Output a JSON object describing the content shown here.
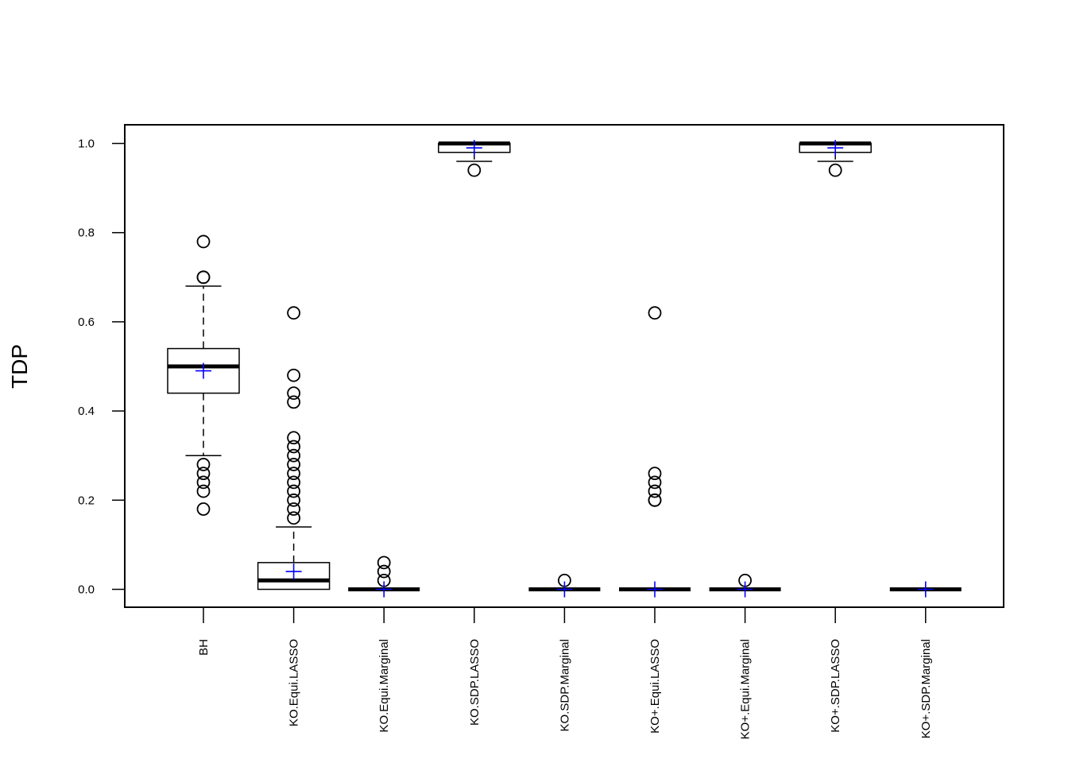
{
  "chart_data": {
    "type": "boxplot",
    "title": "",
    "xlabel": "",
    "ylabel": "TDP",
    "ylim": [
      -0.04,
      1.04
    ],
    "yticks": [
      0.0,
      0.2,
      0.4,
      0.6,
      0.8,
      1.0
    ],
    "ytick_labels": [
      "0.0",
      "0.2",
      "0.4",
      "0.6",
      "0.8",
      "1.0"
    ],
    "grid": false,
    "mean_marker_color": "#0000ff",
    "box_color": "#000000",
    "categories": [
      "BH",
      "KO.Equi.LASSO",
      "KO.Equi.Marginal",
      "KO.SDP.LASSO",
      "KO.SDP.Marginal",
      "KO+.Equi.LASSO",
      "KO+.Equi.Marginal",
      "KO+.SDP.LASSO",
      "KO+.SDP.Marginal"
    ],
    "boxes": [
      {
        "name": "BH",
        "min": 0.3,
        "q1": 0.44,
        "median": 0.5,
        "q3": 0.54,
        "max": 0.68,
        "mean": 0.49,
        "outliers": [
          0.18,
          0.22,
          0.24,
          0.26,
          0.28,
          0.7,
          0.7,
          0.78
        ]
      },
      {
        "name": "KO.Equi.LASSO",
        "min": 0.0,
        "q1": 0.0,
        "median": 0.02,
        "q3": 0.06,
        "max": 0.14,
        "mean": 0.04,
        "outliers": [
          0.16,
          0.18,
          0.2,
          0.22,
          0.24,
          0.26,
          0.28,
          0.3,
          0.32,
          0.34,
          0.42,
          0.44,
          0.48,
          0.62
        ]
      },
      {
        "name": "KO.Equi.Marginal",
        "min": 0.0,
        "q1": 0.0,
        "median": 0.0,
        "q3": 0.0,
        "max": 0.0,
        "mean": 0.0,
        "outliers": [
          0.02,
          0.04,
          0.06
        ]
      },
      {
        "name": "KO.SDP.LASSO",
        "min": 0.96,
        "q1": 0.98,
        "median": 1.0,
        "q3": 1.0,
        "max": 1.0,
        "mean": 0.99,
        "outliers": [
          0.94
        ]
      },
      {
        "name": "KO.SDP.Marginal",
        "min": 0.0,
        "q1": 0.0,
        "median": 0.0,
        "q3": 0.0,
        "max": 0.0,
        "mean": 0.0,
        "outliers": [
          0.02
        ]
      },
      {
        "name": "KO+.Equi.LASSO",
        "min": 0.0,
        "q1": 0.0,
        "median": 0.0,
        "q3": 0.0,
        "max": 0.0,
        "mean": 0.0,
        "outliers": [
          0.2,
          0.2,
          0.22,
          0.24,
          0.26,
          0.62
        ]
      },
      {
        "name": "KO+.Equi.Marginal",
        "min": 0.0,
        "q1": 0.0,
        "median": 0.0,
        "q3": 0.0,
        "max": 0.0,
        "mean": 0.0,
        "outliers": [
          0.02
        ]
      },
      {
        "name": "KO+.SDP.LASSO",
        "min": 0.96,
        "q1": 0.98,
        "median": 1.0,
        "q3": 1.0,
        "max": 1.0,
        "mean": 0.99,
        "outliers": [
          0.94
        ]
      },
      {
        "name": "KO+.SDP.Marginal",
        "min": 0.0,
        "q1": 0.0,
        "median": 0.0,
        "q3": 0.0,
        "max": 0.0,
        "mean": 0.0,
        "outliers": []
      }
    ]
  }
}
